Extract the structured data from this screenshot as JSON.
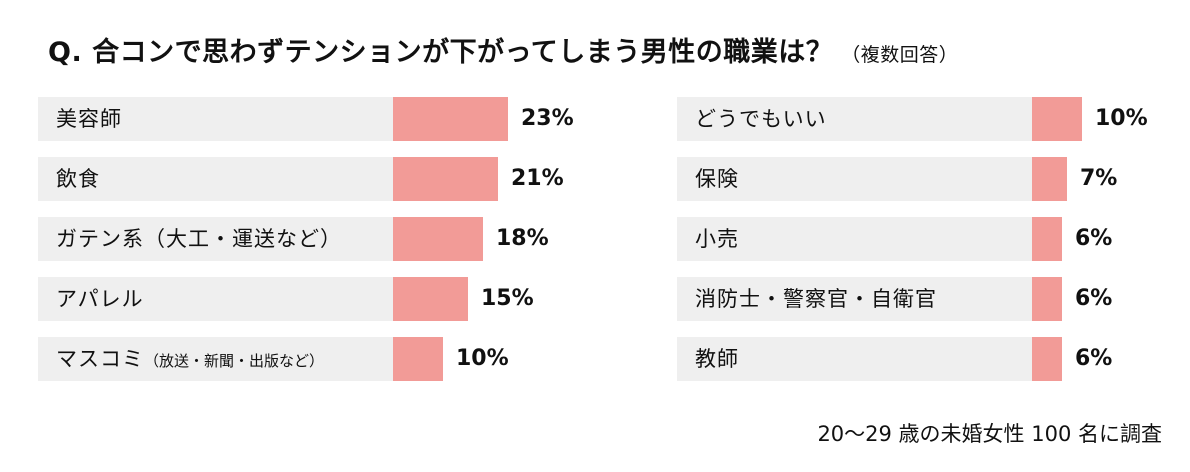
{
  "title": {
    "main": "Q. 合コンで思わずテンションが下がってしまう男性の職業は？",
    "note": "（複数回答）"
  },
  "footnote": "20〜29 歳の未婚女性 100 名に調査",
  "colors": {
    "bar": "#f29b97",
    "row_background": "#efefef"
  },
  "chart_data": [
    {
      "type": "bar",
      "orientation": "horizontal",
      "categories": [
        {
          "label": "美容師",
          "sub": ""
        },
        {
          "label": "飲食",
          "sub": ""
        },
        {
          "label": "ガテン系（大工・運送など）",
          "sub": ""
        },
        {
          "label": "アパレル",
          "sub": ""
        },
        {
          "label": "マスコミ",
          "sub": "（放送・新聞・出版など）"
        }
      ],
      "values": [
        23,
        21,
        18,
        15,
        10
      ],
      "value_labels": [
        "23%",
        "21%",
        "18%",
        "15%",
        "10%"
      ],
      "unit": "%"
    },
    {
      "type": "bar",
      "orientation": "horizontal",
      "categories": [
        {
          "label": "どうでもいい",
          "sub": ""
        },
        {
          "label": "保険",
          "sub": ""
        },
        {
          "label": "小売",
          "sub": ""
        },
        {
          "label": "消防士・警察官・自衛官",
          "sub": ""
        },
        {
          "label": "教師",
          "sub": ""
        }
      ],
      "values": [
        10,
        7,
        6,
        6,
        6
      ],
      "value_labels": [
        "10%",
        "7%",
        "6%",
        "6%",
        "6%"
      ],
      "unit": "%"
    }
  ]
}
